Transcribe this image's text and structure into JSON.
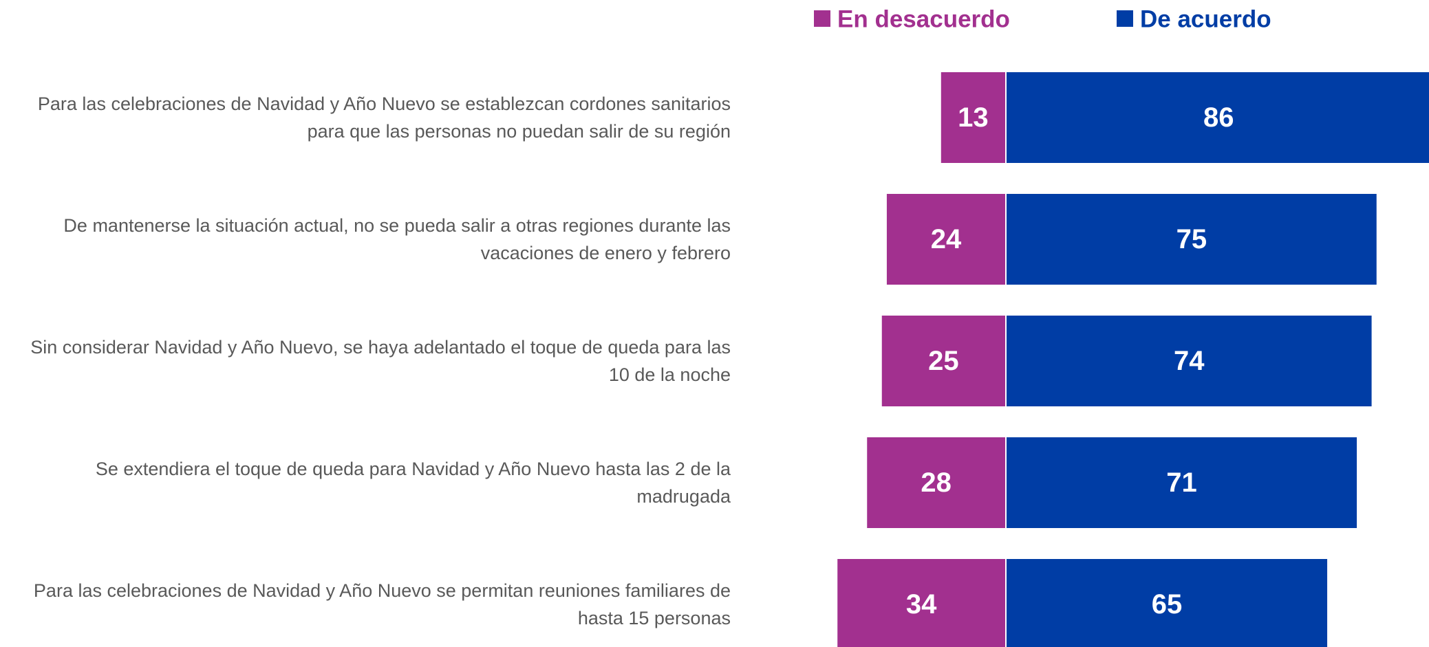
{
  "chart_data": {
    "type": "diverging_bar",
    "categories": [
      "Para las celebraciones de Navidad y Año Nuevo se establezcan cordones sanitarios para que las personas no puedan salir de su región",
      "De mantenerse la situación actual, no se pueda salir a otras regiones durante las vacaciones de enero y febrero",
      "Sin considerar Navidad y Año Nuevo, se haya adelantado el toque de queda para las 10 de la noche",
      "Se extendiera el toque de queda para Navidad y Año Nuevo hasta las 2 de la madrugada",
      "Para las celebraciones de Navidad y Año Nuevo se permitan reuniones familiares de hasta 15 personas"
    ],
    "series": [
      {
        "name": "En desacuerdo",
        "color": "#a2308f",
        "values": [
          13,
          24,
          25,
          28,
          34
        ]
      },
      {
        "name": "De acuerdo",
        "color": "#003da5",
        "values": [
          86,
          75,
          74,
          71,
          65
        ]
      }
    ],
    "legend": "top"
  }
}
